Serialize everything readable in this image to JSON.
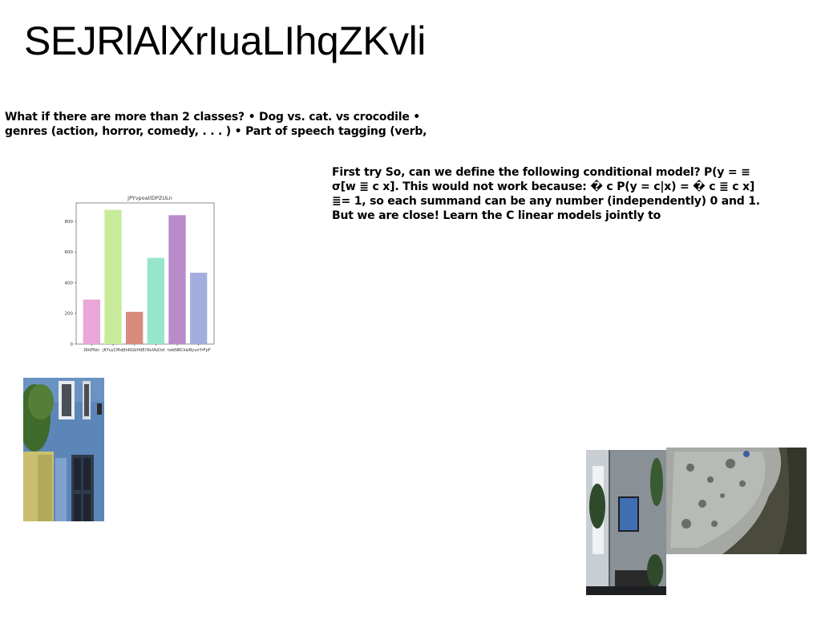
{
  "page": {
    "title": "SEJRlAlXrIuaLIhqZKvli"
  },
  "text_blocks": [
    "What if there are more than 2 classes? • Dog vs. cat. vs crocodile • genres (action, horror, comedy, . . . ) • Part of speech tagging (verb,",
    "First try So, can we define the following conditional model? P(y = ≡ σ[w ≣ c x]. This would not work because: � c P(y = c|x) = � c ≣ c x] ≣= 1, so each summand can be any number (independently) 0 and 1. But we are close! Learn the C linear models jointly to"
  ],
  "chart_data": {
    "type": "bar",
    "title": "jPYvpoatlDPZULn",
    "categories": [
      "DtkPNin",
      "jKYvyCMsf",
      "jthRGbHdEi",
      "NvlAzDzt",
      "twbNRCki",
      "oNyunYrFpF"
    ],
    "values": [
      290,
      875,
      210,
      562,
      840,
      465
    ],
    "colors": [
      "#eaa6d6",
      "#c8eb9b",
      "#d98a7e",
      "#98e6c9",
      "#b98bca",
      "#a4aede"
    ],
    "ylim": [
      0,
      920
    ],
    "yticks": [
      0,
      200,
      400,
      600,
      800
    ],
    "xlabel": "",
    "ylabel": "",
    "grid": false
  },
  "images": [
    {
      "name": "photo-building",
      "subject": "blue building facade with windows and tree"
    },
    {
      "name": "photo-room",
      "subject": "dim room with television and plants"
    },
    {
      "name": "photo-rock",
      "subject": "textured gray rock close-up"
    }
  ]
}
